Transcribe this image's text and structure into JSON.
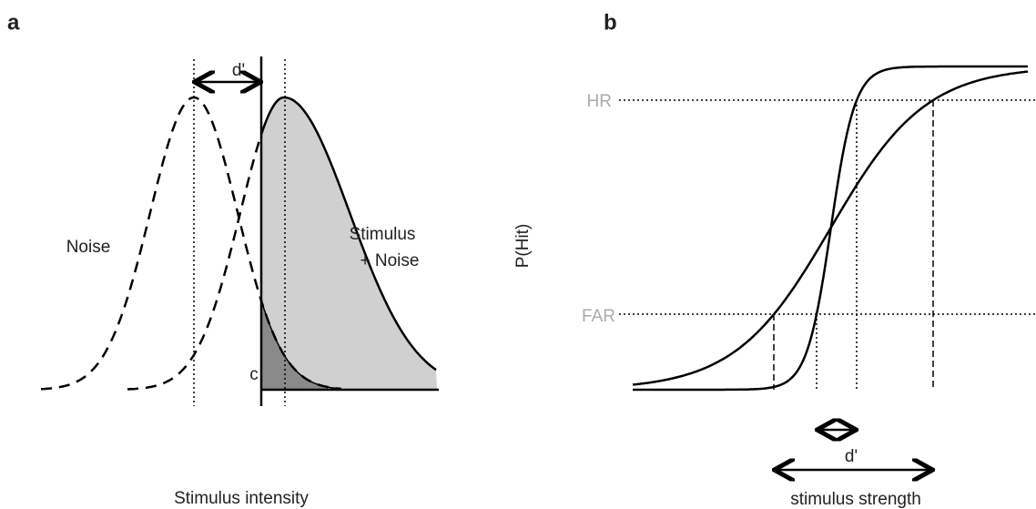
{
  "panel_a": {
    "label": "a",
    "d_prime": "d'",
    "noise": "Noise",
    "signal_line1": "Stimulus",
    "signal_line2": "+ Noise",
    "criterion": "c",
    "x_axis_label": "Stimulus intensity"
  },
  "panel_b": {
    "label": "b",
    "y_axis_label": "P(Hit)",
    "hr": "HR",
    "far": "FAR",
    "d_prime": "d'",
    "x_axis_label": "stimulus strength"
  }
}
